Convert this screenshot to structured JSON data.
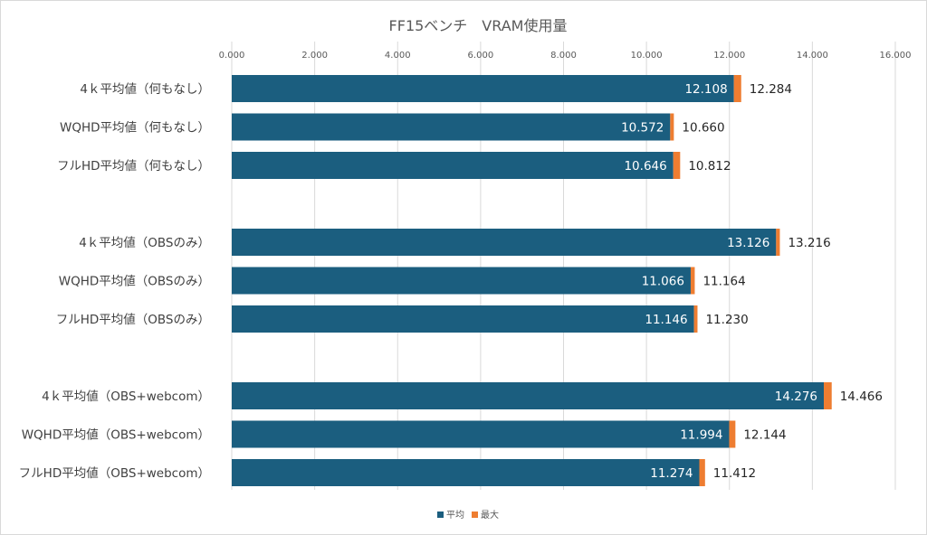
{
  "chart_data": {
    "type": "bar",
    "orientation": "horizontal",
    "stacked": true,
    "title": "FF15ベンチ　VRAM使用量",
    "xlim": [
      0,
      16
    ],
    "x_ticks": [
      "0.000",
      "2.000",
      "4.000",
      "6.000",
      "8.000",
      "10.000",
      "12.000",
      "14.000",
      "16.000"
    ],
    "x_axis_position": "top",
    "grid": true,
    "legend_position": "bottom",
    "colors": {
      "avg": "#1b5e7f",
      "max": "#ee7d31"
    },
    "series": [
      {
        "name": "平均"
      },
      {
        "name": "最大"
      }
    ],
    "groups": [
      {
        "rows": [
          {
            "label": "4ｋ平均値（何もなし）",
            "avg": 12.108,
            "max": 12.284,
            "avg_label": "12.108",
            "max_label": "12.284"
          },
          {
            "label": "WQHD平均値（何もなし）",
            "avg": 10.572,
            "max": 10.66,
            "avg_label": "10.572",
            "max_label": "10.660"
          },
          {
            "label": "フルHD平均値（何もなし）",
            "avg": 10.646,
            "max": 10.812,
            "avg_label": "10.646",
            "max_label": "10.812"
          }
        ]
      },
      {
        "rows": [
          {
            "label": "4ｋ平均値（OBSのみ）",
            "avg": 13.126,
            "max": 13.216,
            "avg_label": "13.126",
            "max_label": "13.216"
          },
          {
            "label": "WQHD平均値（OBSのみ）",
            "avg": 11.066,
            "max": 11.164,
            "avg_label": "11.066",
            "max_label": "11.164"
          },
          {
            "label": "フルHD平均値（OBSのみ）",
            "avg": 11.146,
            "max": 11.23,
            "avg_label": "11.146",
            "max_label": "11.230"
          }
        ]
      },
      {
        "rows": [
          {
            "label": "4ｋ平均値（OBS+webcom）",
            "avg": 14.276,
            "max": 14.466,
            "avg_label": "14.276",
            "max_label": "14.466"
          },
          {
            "label": "WQHD平均値（OBS+webcom）",
            "avg": 11.994,
            "max": 12.144,
            "avg_label": "11.994",
            "max_label": "12.144"
          },
          {
            "label": "フルHD平均値（OBS+webcom）",
            "avg": 11.274,
            "max": 11.412,
            "avg_label": "11.274",
            "max_label": "11.412"
          }
        ]
      }
    ]
  }
}
